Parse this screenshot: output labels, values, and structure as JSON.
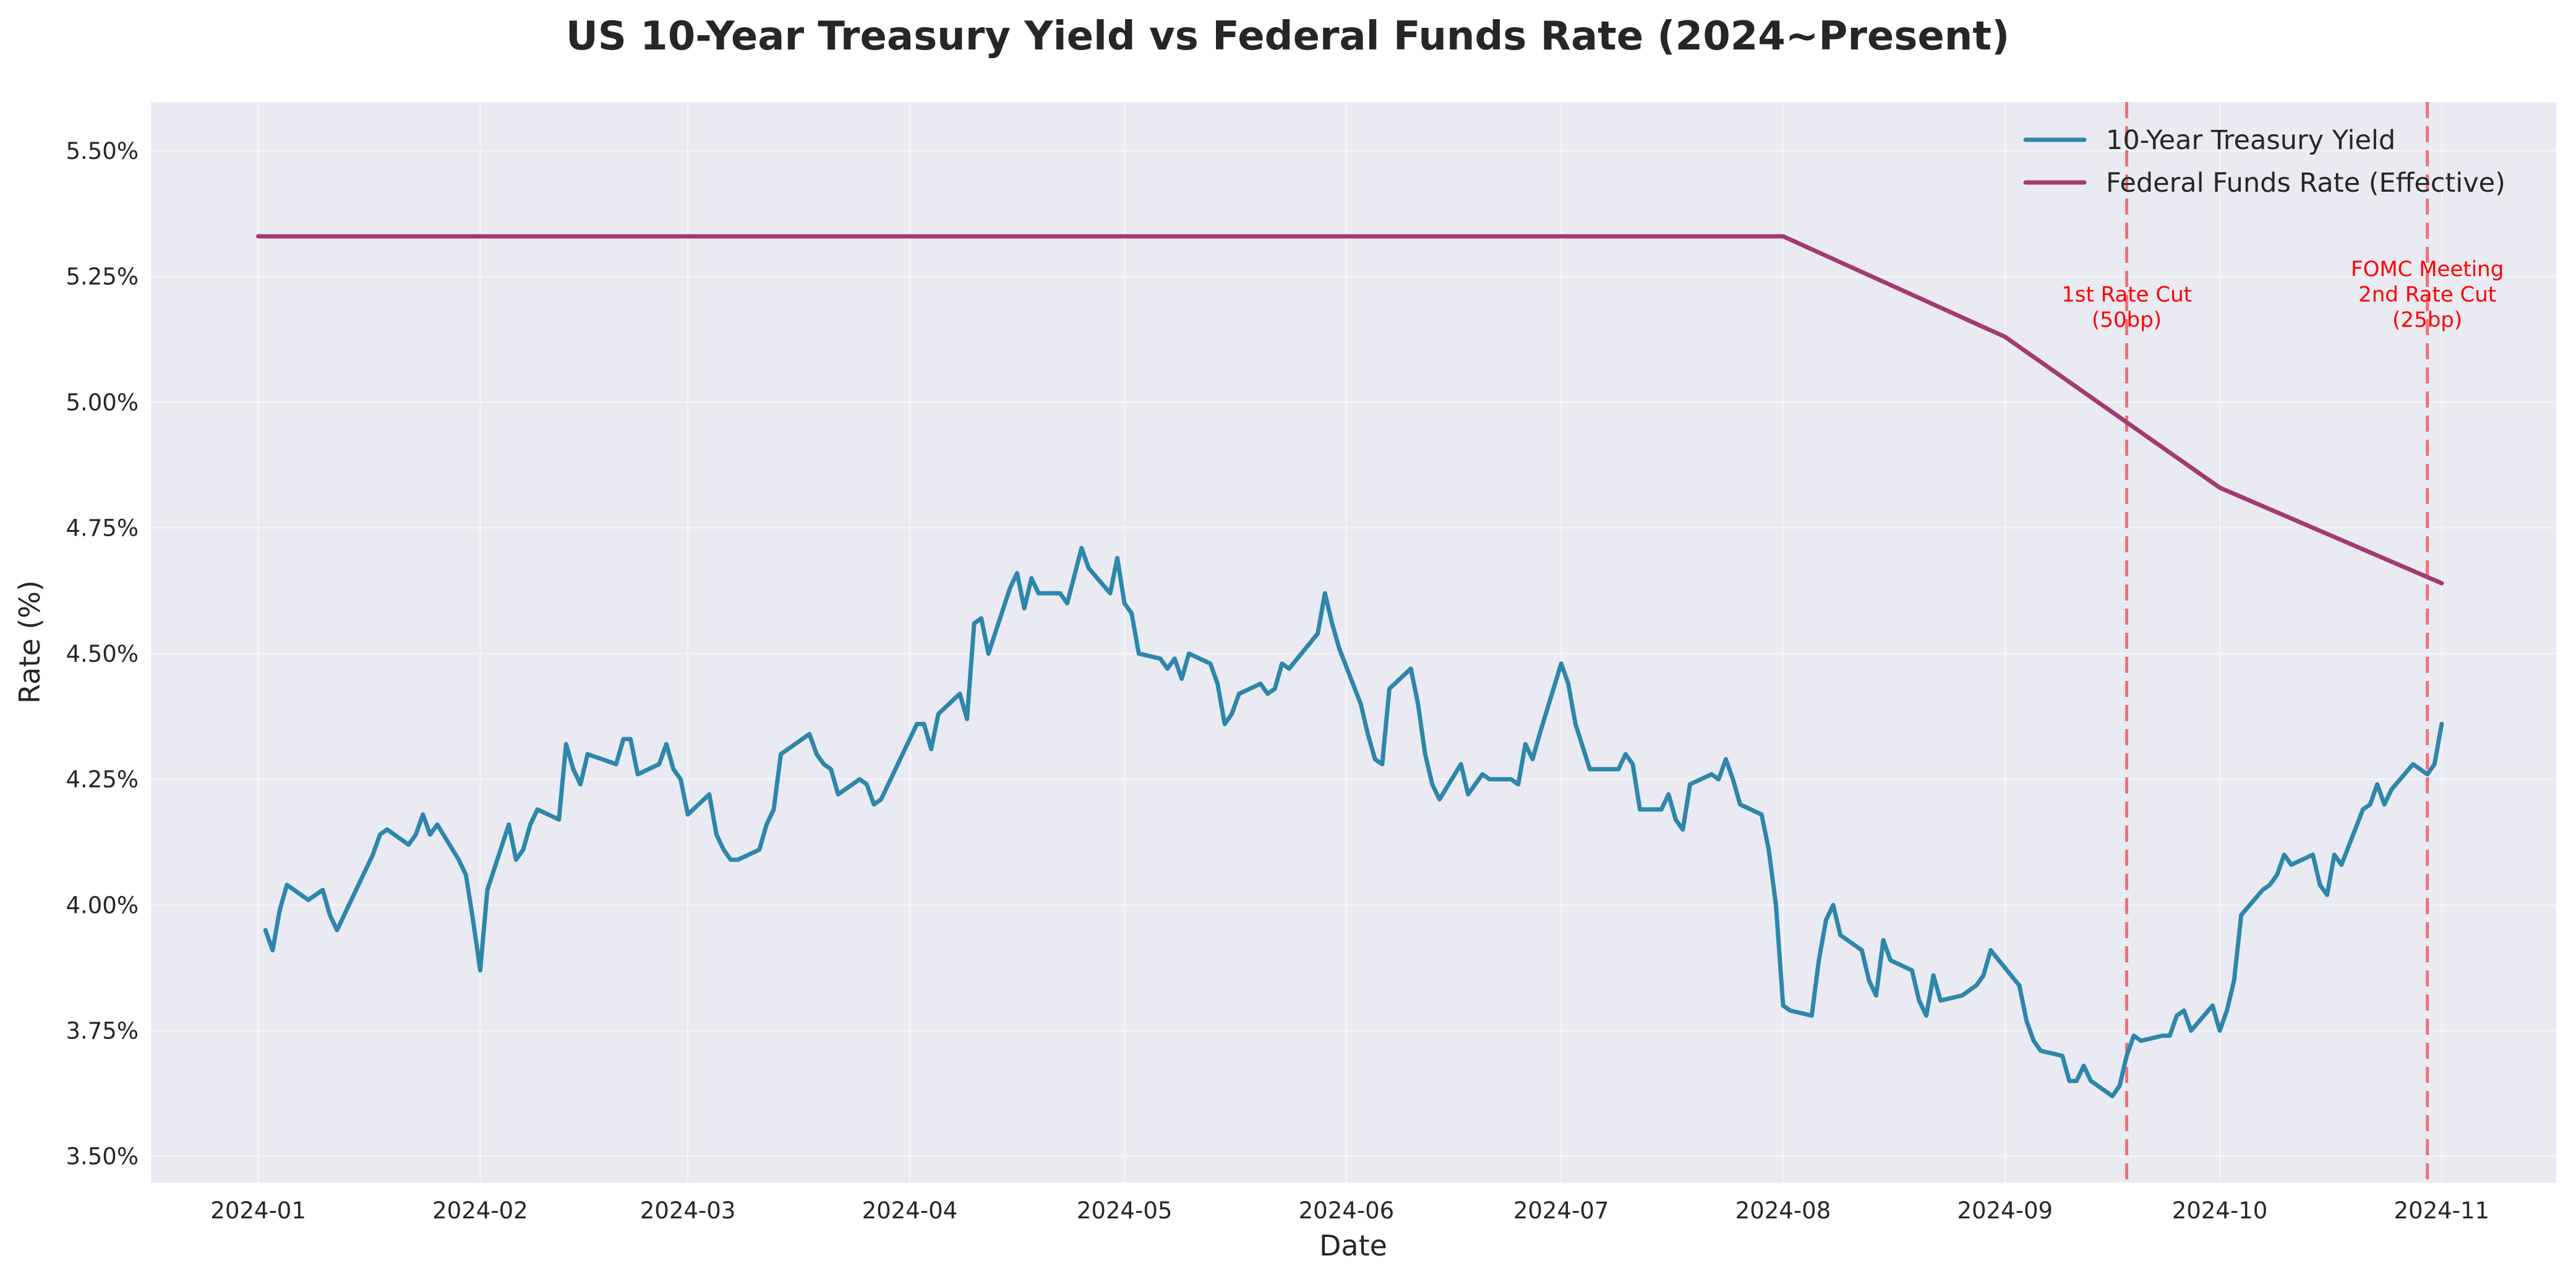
{
  "chart_data": {
    "type": "line",
    "title": "US 10-Year Treasury Yield vs Federal Funds Rate (2024~Present)",
    "xlabel": "Date",
    "ylabel": "Rate (%)",
    "xlim": [
      "2023-12-17",
      "2024-11-17"
    ],
    "ylim": [
      3.448,
      5.597
    ],
    "grid": true,
    "legend_placement": "top-right",
    "background_color": "#EAEAF2",
    "x_ticks": [
      "2024-01",
      "2024-02",
      "2024-03",
      "2024-04",
      "2024-05",
      "2024-06",
      "2024-07",
      "2024-08",
      "2024-09",
      "2024-10",
      "2024-11"
    ],
    "y_ticks": [
      3.5,
      3.75,
      4.0,
      4.25,
      4.5,
      4.75,
      5.0,
      5.25,
      5.5
    ],
    "y_tick_labels": [
      "3.50%",
      "3.75%",
      "4.00%",
      "4.25%",
      "4.50%",
      "4.75%",
      "5.00%",
      "5.25%",
      "5.50%"
    ],
    "series": [
      {
        "name": "10-Year Treasury Yield",
        "color": "#2E86AB",
        "points": [
          [
            "2024-01-02",
            3.95
          ],
          [
            "2024-01-03",
            3.91
          ],
          [
            "2024-01-04",
            3.99
          ],
          [
            "2024-01-05",
            4.04
          ],
          [
            "2024-01-08",
            4.01
          ],
          [
            "2024-01-09",
            4.02
          ],
          [
            "2024-01-10",
            4.03
          ],
          [
            "2024-01-11",
            3.98
          ],
          [
            "2024-01-12",
            3.95
          ],
          [
            "2024-01-16",
            4.07
          ],
          [
            "2024-01-17",
            4.1
          ],
          [
            "2024-01-18",
            4.14
          ],
          [
            "2024-01-19",
            4.15
          ],
          [
            "2024-01-22",
            4.12
          ],
          [
            "2024-01-23",
            4.14
          ],
          [
            "2024-01-24",
            4.18
          ],
          [
            "2024-01-25",
            4.14
          ],
          [
            "2024-01-26",
            4.16
          ],
          [
            "2024-01-29",
            4.09
          ],
          [
            "2024-01-30",
            4.06
          ],
          [
            "2024-01-31",
            3.97
          ],
          [
            "2024-02-01",
            3.87
          ],
          [
            "2024-02-02",
            4.03
          ],
          [
            "2024-02-05",
            4.16
          ],
          [
            "2024-02-06",
            4.09
          ],
          [
            "2024-02-07",
            4.11
          ],
          [
            "2024-02-08",
            4.16
          ],
          [
            "2024-02-09",
            4.19
          ],
          [
            "2024-02-12",
            4.17
          ],
          [
            "2024-02-13",
            4.32
          ],
          [
            "2024-02-14",
            4.27
          ],
          [
            "2024-02-15",
            4.24
          ],
          [
            "2024-02-16",
            4.3
          ],
          [
            "2024-02-20",
            4.28
          ],
          [
            "2024-02-21",
            4.33
          ],
          [
            "2024-02-22",
            4.33
          ],
          [
            "2024-02-23",
            4.26
          ],
          [
            "2024-02-26",
            4.28
          ],
          [
            "2024-02-27",
            4.32
          ],
          [
            "2024-02-28",
            4.27
          ],
          [
            "2024-02-29",
            4.25
          ],
          [
            "2024-03-01",
            4.18
          ],
          [
            "2024-03-04",
            4.22
          ],
          [
            "2024-03-05",
            4.14
          ],
          [
            "2024-03-06",
            4.11
          ],
          [
            "2024-03-07",
            4.09
          ],
          [
            "2024-03-08",
            4.09
          ],
          [
            "2024-03-11",
            4.11
          ],
          [
            "2024-03-12",
            4.16
          ],
          [
            "2024-03-13",
            4.19
          ],
          [
            "2024-03-14",
            4.3
          ],
          [
            "2024-03-15",
            4.31
          ],
          [
            "2024-03-18",
            4.34
          ],
          [
            "2024-03-19",
            4.3
          ],
          [
            "2024-03-20",
            4.28
          ],
          [
            "2024-03-21",
            4.27
          ],
          [
            "2024-03-22",
            4.22
          ],
          [
            "2024-03-25",
            4.25
          ],
          [
            "2024-03-26",
            4.24
          ],
          [
            "2024-03-27",
            4.2
          ],
          [
            "2024-03-28",
            4.21
          ],
          [
            "2024-04-01",
            4.33
          ],
          [
            "2024-04-02",
            4.36
          ],
          [
            "2024-04-03",
            4.36
          ],
          [
            "2024-04-04",
            4.31
          ],
          [
            "2024-04-05",
            4.38
          ],
          [
            "2024-04-08",
            4.42
          ],
          [
            "2024-04-09",
            4.37
          ],
          [
            "2024-04-10",
            4.56
          ],
          [
            "2024-04-11",
            4.57
          ],
          [
            "2024-04-12",
            4.5
          ],
          [
            "2024-04-15",
            4.63
          ],
          [
            "2024-04-16",
            4.66
          ],
          [
            "2024-04-17",
            4.59
          ],
          [
            "2024-04-18",
            4.65
          ],
          [
            "2024-04-19",
            4.62
          ],
          [
            "2024-04-22",
            4.62
          ],
          [
            "2024-04-23",
            4.6
          ],
          [
            "2024-04-25",
            4.71
          ],
          [
            "2024-04-26",
            4.67
          ],
          [
            "2024-04-29",
            4.62
          ],
          [
            "2024-04-30",
            4.69
          ],
          [
            "2024-05-01",
            4.6
          ],
          [
            "2024-05-02",
            4.58
          ],
          [
            "2024-05-03",
            4.5
          ],
          [
            "2024-05-06",
            4.49
          ],
          [
            "2024-05-07",
            4.47
          ],
          [
            "2024-05-08",
            4.49
          ],
          [
            "2024-05-09",
            4.45
          ],
          [
            "2024-05-10",
            4.5
          ],
          [
            "2024-05-13",
            4.48
          ],
          [
            "2024-05-14",
            4.44
          ],
          [
            "2024-05-15",
            4.36
          ],
          [
            "2024-05-16",
            4.38
          ],
          [
            "2024-05-17",
            4.42
          ],
          [
            "2024-05-20",
            4.44
          ],
          [
            "2024-05-21",
            4.42
          ],
          [
            "2024-05-22",
            4.43
          ],
          [
            "2024-05-23",
            4.48
          ],
          [
            "2024-05-24",
            4.47
          ],
          [
            "2024-05-28",
            4.54
          ],
          [
            "2024-05-29",
            4.62
          ],
          [
            "2024-05-30",
            4.56
          ],
          [
            "2024-05-31",
            4.51
          ],
          [
            "2024-06-03",
            4.4
          ],
          [
            "2024-06-04",
            4.34
          ],
          [
            "2024-06-05",
            4.29
          ],
          [
            "2024-06-06",
            4.28
          ],
          [
            "2024-06-07",
            4.43
          ],
          [
            "2024-06-10",
            4.47
          ],
          [
            "2024-06-11",
            4.4
          ],
          [
            "2024-06-12",
            4.3
          ],
          [
            "2024-06-13",
            4.24
          ],
          [
            "2024-06-14",
            4.21
          ],
          [
            "2024-06-17",
            4.28
          ],
          [
            "2024-06-18",
            4.22
          ],
          [
            "2024-06-20",
            4.26
          ],
          [
            "2024-06-21",
            4.25
          ],
          [
            "2024-06-24",
            4.25
          ],
          [
            "2024-06-25",
            4.24
          ],
          [
            "2024-06-26",
            4.32
          ],
          [
            "2024-06-27",
            4.29
          ],
          [
            "2024-06-28",
            4.34
          ],
          [
            "2024-07-01",
            4.48
          ],
          [
            "2024-07-02",
            4.44
          ],
          [
            "2024-07-03",
            4.36
          ],
          [
            "2024-07-05",
            4.27
          ],
          [
            "2024-07-08",
            4.27
          ],
          [
            "2024-07-09",
            4.27
          ],
          [
            "2024-07-10",
            4.3
          ],
          [
            "2024-07-11",
            4.28
          ],
          [
            "2024-07-12",
            4.19
          ],
          [
            "2024-07-15",
            4.19
          ],
          [
            "2024-07-16",
            4.22
          ],
          [
            "2024-07-17",
            4.17
          ],
          [
            "2024-07-18",
            4.15
          ],
          [
            "2024-07-19",
            4.24
          ],
          [
            "2024-07-22",
            4.26
          ],
          [
            "2024-07-23",
            4.25
          ],
          [
            "2024-07-24",
            4.29
          ],
          [
            "2024-07-25",
            4.25
          ],
          [
            "2024-07-26",
            4.2
          ],
          [
            "2024-07-29",
            4.18
          ],
          [
            "2024-07-30",
            4.11
          ],
          [
            "2024-07-31",
            4.0
          ],
          [
            "2024-08-01",
            3.8
          ],
          [
            "2024-08-02",
            3.79
          ],
          [
            "2024-08-05",
            3.78
          ],
          [
            "2024-08-06",
            3.89
          ],
          [
            "2024-08-07",
            3.97
          ],
          [
            "2024-08-08",
            4.0
          ],
          [
            "2024-08-09",
            3.94
          ],
          [
            "2024-08-12",
            3.91
          ],
          [
            "2024-08-13",
            3.85
          ],
          [
            "2024-08-14",
            3.82
          ],
          [
            "2024-08-15",
            3.93
          ],
          [
            "2024-08-16",
            3.89
          ],
          [
            "2024-08-19",
            3.87
          ],
          [
            "2024-08-20",
            3.81
          ],
          [
            "2024-08-21",
            3.78
          ],
          [
            "2024-08-22",
            3.86
          ],
          [
            "2024-08-23",
            3.81
          ],
          [
            "2024-08-26",
            3.82
          ],
          [
            "2024-08-27",
            3.83
          ],
          [
            "2024-08-28",
            3.84
          ],
          [
            "2024-08-29",
            3.86
          ],
          [
            "2024-08-30",
            3.91
          ],
          [
            "2024-09-03",
            3.84
          ],
          [
            "2024-09-04",
            3.77
          ],
          [
            "2024-09-05",
            3.73
          ],
          [
            "2024-09-06",
            3.71
          ],
          [
            "2024-09-09",
            3.7
          ],
          [
            "2024-09-10",
            3.65
          ],
          [
            "2024-09-11",
            3.65
          ],
          [
            "2024-09-12",
            3.68
          ],
          [
            "2024-09-13",
            3.65
          ],
          [
            "2024-09-16",
            3.62
          ],
          [
            "2024-09-17",
            3.64
          ],
          [
            "2024-09-18",
            3.7
          ],
          [
            "2024-09-19",
            3.74
          ],
          [
            "2024-09-20",
            3.73
          ],
          [
            "2024-09-23",
            3.74
          ],
          [
            "2024-09-24",
            3.74
          ],
          [
            "2024-09-25",
            3.78
          ],
          [
            "2024-09-26",
            3.79
          ],
          [
            "2024-09-27",
            3.75
          ],
          [
            "2024-09-30",
            3.8
          ],
          [
            "2024-10-01",
            3.75
          ],
          [
            "2024-10-02",
            3.79
          ],
          [
            "2024-10-03",
            3.85
          ],
          [
            "2024-10-04",
            3.98
          ],
          [
            "2024-10-07",
            4.03
          ],
          [
            "2024-10-08",
            4.04
          ],
          [
            "2024-10-09",
            4.06
          ],
          [
            "2024-10-10",
            4.1
          ],
          [
            "2024-10-11",
            4.08
          ],
          [
            "2024-10-14",
            4.1
          ],
          [
            "2024-10-15",
            4.04
          ],
          [
            "2024-10-16",
            4.02
          ],
          [
            "2024-10-17",
            4.1
          ],
          [
            "2024-10-18",
            4.08
          ],
          [
            "2024-10-21",
            4.19
          ],
          [
            "2024-10-22",
            4.2
          ],
          [
            "2024-10-23",
            4.24
          ],
          [
            "2024-10-24",
            4.2
          ],
          [
            "2024-10-25",
            4.23
          ],
          [
            "2024-10-28",
            4.28
          ],
          [
            "2024-10-29",
            4.27
          ],
          [
            "2024-10-30",
            4.26
          ],
          [
            "2024-10-31",
            4.28
          ],
          [
            "2024-11-01",
            4.36
          ]
        ]
      },
      {
        "name": "Federal Funds Rate (Effective)",
        "color": "#A23B72",
        "points": [
          [
            "2024-01-01",
            5.33
          ],
          [
            "2024-08-01",
            5.33
          ],
          [
            "2024-09-01",
            5.13
          ],
          [
            "2024-10-01",
            4.83
          ],
          [
            "2024-11-01",
            4.64
          ]
        ]
      }
    ],
    "vlines": [
      {
        "date": "2024-09-18",
        "color": "#F07178",
        "style": "dashed",
        "label": [
          "1st Rate Cut",
          "(50bp)"
        ]
      },
      {
        "date": "2024-10-30",
        "color": "#F07178",
        "style": "dashed",
        "label": [
          "FOMC Meeting",
          "2nd Rate Cut",
          "(25bp)"
        ]
      }
    ],
    "annotation_color": "#FF0000"
  }
}
